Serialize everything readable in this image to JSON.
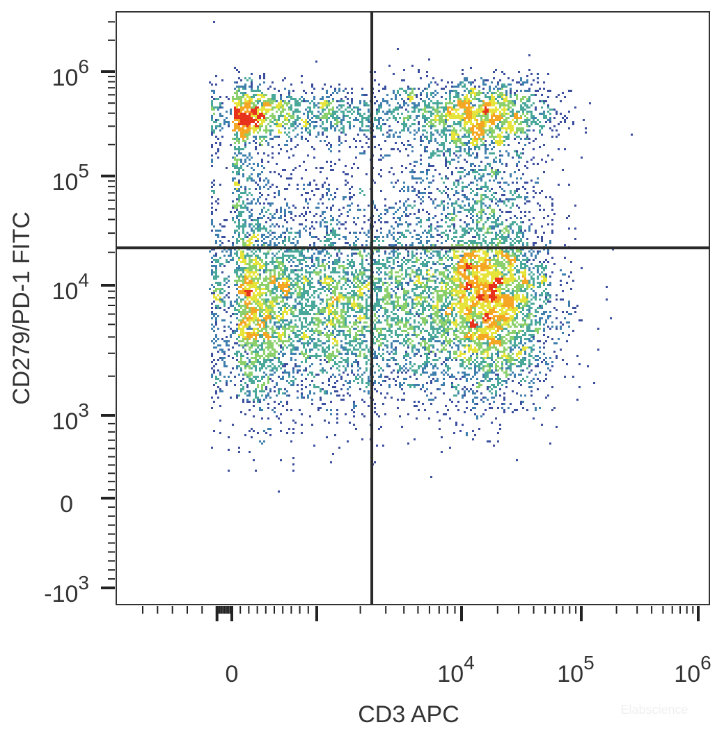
{
  "chart_data": {
    "type": "scatter",
    "subtype": "flow-cytometry pseudocolor density dot plot",
    "xlabel": "CD3 APC",
    "ylabel": "CD279/PD-1 FITC",
    "x_scale": "biexponential",
    "y_scale": "biexponential",
    "xlim": [
      -6000,
      1500000
    ],
    "ylim": [
      -2500,
      3000000
    ],
    "x_ticks": [
      {
        "value": 0,
        "base": "0",
        "exp": ""
      },
      {
        "value": 10000,
        "base": "10",
        "exp": "4"
      },
      {
        "value": 100000,
        "base": "10",
        "exp": "5"
      },
      {
        "value": 1000000,
        "base": "10",
        "exp": "6"
      }
    ],
    "y_ticks": [
      {
        "value": -1000,
        "base": "-10",
        "exp": "3"
      },
      {
        "value": 0,
        "base": "0",
        "exp": ""
      },
      {
        "value": 1000,
        "base": "10",
        "exp": "3"
      },
      {
        "value": 10000,
        "base": "10",
        "exp": "4"
      },
      {
        "value": 100000,
        "base": "10",
        "exp": "5"
      },
      {
        "value": 1000000,
        "base": "10",
        "exp": "6"
      }
    ],
    "quadrant_gate": {
      "x": 2400,
      "y": 22000
    },
    "density_colors": [
      "#3b4f9e",
      "#3f7fae",
      "#4aa89a",
      "#8cd06e",
      "#e6e43a",
      "#f5a623",
      "#e8331c"
    ],
    "populations": [
      {
        "x": 1100,
        "y": 6500,
        "x_spread": 0.55,
        "y_spread": 0.38,
        "n": 5200
      },
      {
        "x": 16000,
        "y": 7500,
        "x_spread": 0.28,
        "y_spread": 0.36,
        "n": 3600
      },
      {
        "x": 600,
        "y": 400000,
        "x_spread": 0.6,
        "y_spread": 0.14,
        "n": 1500
      },
      {
        "x": 14000,
        "y": 380000,
        "x_spread": 0.3,
        "y_spread": 0.18,
        "n": 1500
      },
      {
        "x": 500,
        "y": 60000,
        "x_spread": 0.8,
        "y_spread": 0.45,
        "n": 900
      },
      {
        "x": 13000,
        "y": 70000,
        "x_spread": 0.3,
        "y_spread": 0.35,
        "n": 700
      }
    ],
    "grid": false,
    "legend": "none"
  },
  "watermark": "Elabscience"
}
